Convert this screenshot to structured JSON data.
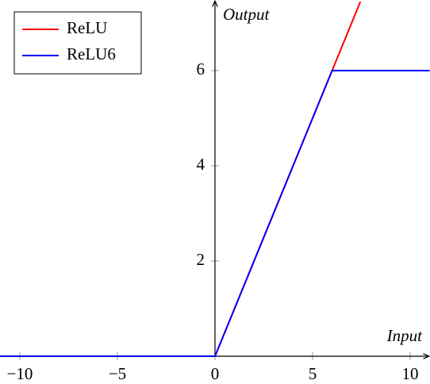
{
  "chart_data": {
    "type": "line",
    "xlabel": "Input",
    "ylabel": "Output",
    "xlim": [
      -11,
      11
    ],
    "ylim": [
      0,
      7.45
    ],
    "xticks": [
      {
        "value": -10,
        "label": "−10"
      },
      {
        "value": -5,
        "label": "−5"
      },
      0,
      5,
      10
    ],
    "yticks": [
      2,
      4,
      6
    ],
    "legend": "upper left",
    "series": [
      {
        "name": "ReLU",
        "color": "#ff0000",
        "x": [
          -11,
          0,
          7.45
        ],
        "values": [
          0,
          0,
          7.45
        ]
      },
      {
        "name": "ReLU6",
        "color": "#0000ff",
        "x": [
          -11,
          0,
          6,
          11
        ],
        "values": [
          0,
          0,
          6,
          6
        ]
      }
    ]
  }
}
